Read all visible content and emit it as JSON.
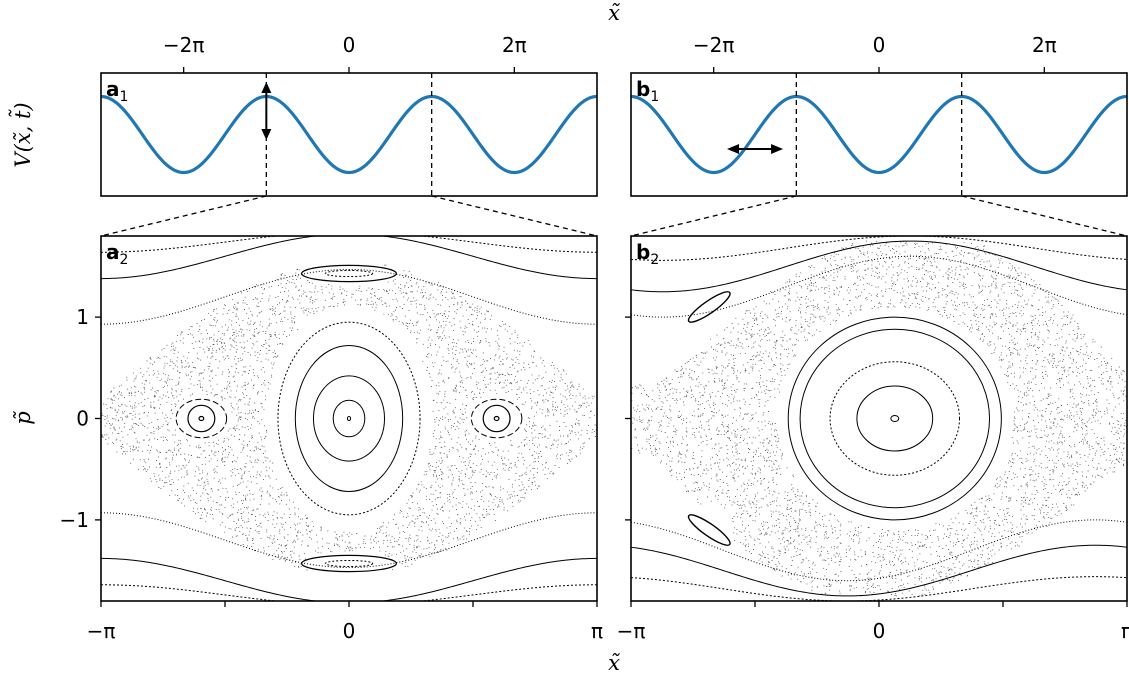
{
  "figure": {
    "xlabel_top": "x̃",
    "xlabel_bottom": "x̃",
    "ylabel_top": "V(x̃, t̃)",
    "ylabel_bottom": "p̃"
  },
  "chart_data": [
    {
      "panel": "a1",
      "type": "line",
      "panel_label": {
        "letter": "a",
        "index": "1"
      },
      "x_ticks": [
        "−2π",
        "0",
        "2π"
      ],
      "xlim": [
        -9.4248,
        9.4248
      ],
      "series": [
        {
          "function": "-cos(x)",
          "color": "#1f77b4"
        }
      ],
      "annotations": [
        {
          "type": "double-arrow",
          "orientation": "vertical",
          "x": -3.1416
        }
      ],
      "dashed_markers_x": [
        -3.1416,
        3.1416
      ]
    },
    {
      "panel": "b1",
      "type": "line",
      "panel_label": {
        "letter": "b",
        "index": "1"
      },
      "x_ticks": [
        "−2π",
        "0",
        "2π"
      ],
      "xlim": [
        -9.4248,
        9.4248
      ],
      "series": [
        {
          "function": "-cos(x)",
          "color": "#1f77b4"
        }
      ],
      "annotations": [
        {
          "type": "double-arrow",
          "orientation": "horizontal",
          "x_center": -4.71
        }
      ],
      "dashed_markers_x": [
        -3.1416,
        3.1416
      ]
    },
    {
      "panel": "a2",
      "type": "scatter",
      "panel_label": {
        "letter": "a",
        "index": "2"
      },
      "x_ticks": [
        "−π",
        "0",
        "π"
      ],
      "y_ticks": [
        "−1",
        "0",
        "1"
      ],
      "xlim": [
        -3.1416,
        3.1416
      ],
      "ylim": [
        -1.8,
        1.8
      ],
      "description_of_curves": {
        "central_island_radii_x": [
          0.2,
          0.45,
          0.68,
          0.9
        ],
        "central_island_radii_y": [
          0.18,
          0.42,
          0.72,
          0.95
        ],
        "side_islands_centers_x": [
          -1.87,
          1.87
        ],
        "top_bottom_islands_y": [
          1.43,
          -1.43
        ],
        "outer_rotational_p": [
          1.6,
          1.72,
          -1.6,
          -1.72
        ]
      }
    },
    {
      "panel": "b2",
      "type": "scatter",
      "panel_label": {
        "letter": "b",
        "index": "2"
      },
      "x_ticks": [
        "−π",
        "0",
        "π"
      ],
      "y_ticks": [
        "−1",
        "0",
        "1"
      ],
      "xlim": [
        -3.1416,
        3.1416
      ],
      "ylim": [
        -1.8,
        1.8
      ],
      "description_of_curves": {
        "island_center": [
          0.2,
          0.0
        ],
        "island_radii_x": [
          0.05,
          0.48,
          0.82,
          1.2
        ],
        "island_radii_y": [
          0.03,
          0.32,
          0.56,
          0.88
        ],
        "secondary_islands": [
          [
            -2.15,
            1.1
          ],
          [
            -2.15,
            -1.1
          ]
        ]
      }
    }
  ]
}
